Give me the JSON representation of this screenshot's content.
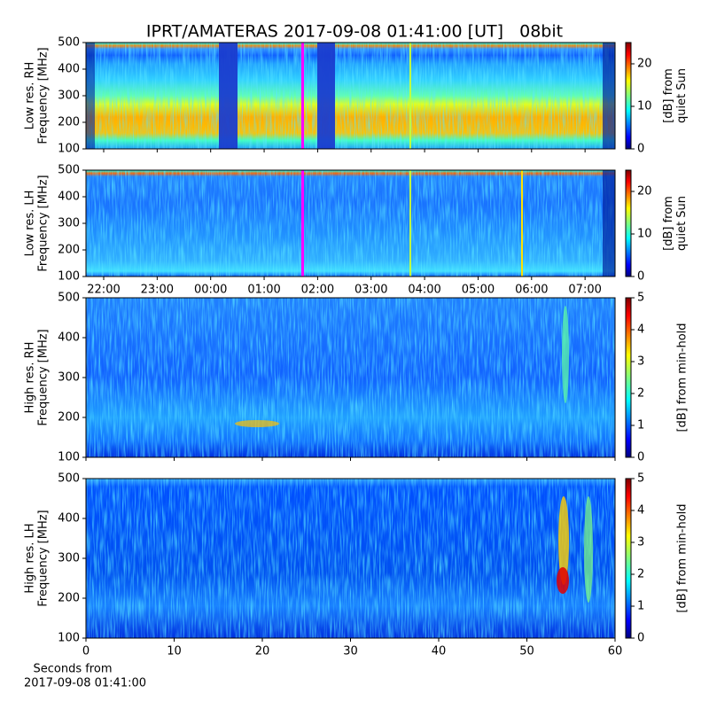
{
  "title": "IPRT/AMATERAS 2017-09-08 01:41:00 [UT]   08bit",
  "chart_data": [
    {
      "type": "heatmap",
      "ylabel": [
        "Low res. RH",
        "Frequency [MHz]"
      ],
      "ylim": [
        100,
        500
      ],
      "yticks": [
        100,
        200,
        300,
        400,
        500
      ],
      "colorbar_label": [
        "[dB] from",
        "quiet Sun"
      ],
      "clim": [
        0,
        25
      ],
      "cticks": [
        0,
        10,
        20
      ]
    },
    {
      "type": "heatmap",
      "ylabel": [
        "Low res. LH",
        "Frequency [MHz]"
      ],
      "ylim": [
        100,
        500
      ],
      "yticks": [
        100,
        200,
        300,
        400,
        500
      ],
      "categories": [
        "22:00",
        "23:00",
        "00:00",
        "01:00",
        "02:00",
        "03:00",
        "04:00",
        "05:00",
        "06:00",
        "07:00"
      ],
      "colorbar_label": [
        "[dB] from",
        "quiet Sun"
      ],
      "clim": [
        0,
        25
      ],
      "cticks": [
        0,
        10,
        20
      ]
    },
    {
      "type": "heatmap",
      "ylabel": [
        "High res. RH",
        "Frequency [MHz]"
      ],
      "ylim": [
        100,
        500
      ],
      "yticks": [
        100,
        200,
        300,
        400,
        500
      ],
      "colorbar_label": [
        "[dB] from min-hold"
      ],
      "clim": [
        0,
        5
      ],
      "cticks": [
        0,
        1,
        2,
        3,
        4,
        5
      ]
    },
    {
      "type": "heatmap",
      "ylabel": [
        "High res. LH",
        "Frequency [MHz]"
      ],
      "ylim": [
        100,
        500
      ],
      "yticks": [
        100,
        200,
        300,
        400,
        500
      ],
      "xlim": [
        0,
        60
      ],
      "xticks": [
        0,
        10,
        20,
        30,
        40,
        50,
        60
      ],
      "xlabel": [
        "Seconds from",
        "2017-09-08 01:41:00"
      ],
      "colorbar_label": [
        "[dB] from min-hold"
      ],
      "clim": [
        0,
        5
      ],
      "cticks": [
        0,
        1,
        2,
        3,
        4,
        5
      ]
    }
  ]
}
